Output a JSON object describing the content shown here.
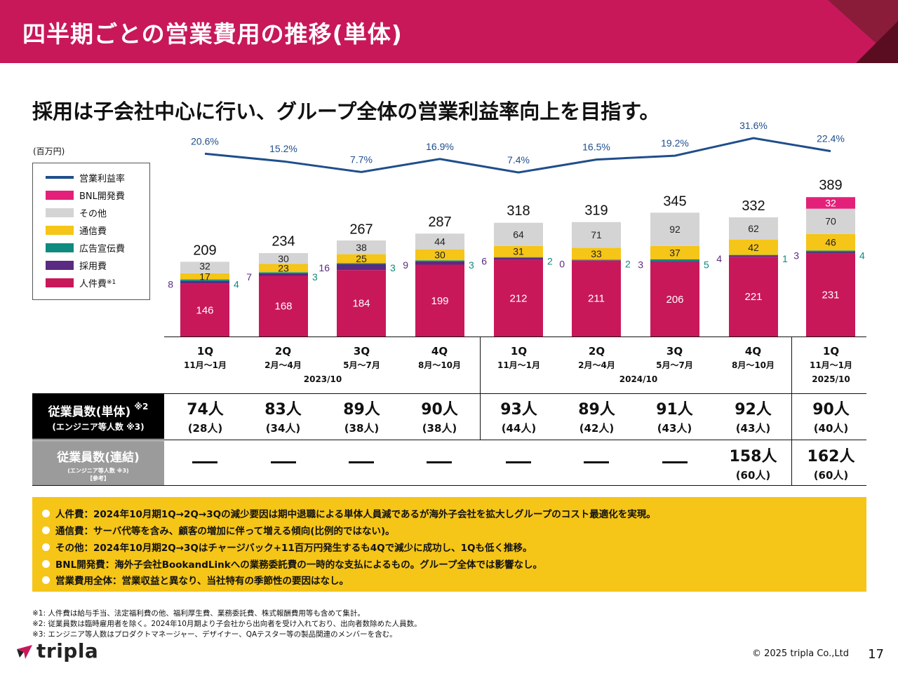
{
  "header": {
    "title": "四半期ごとの営業費用の推移(単体)"
  },
  "subtitle": "採用は子会社中心に行い、グループ全体の営業利益率向上を目指す。",
  "unit_label": "(百万円)",
  "legend": [
    {
      "label": "営業利益率",
      "color": "#1f4e8c",
      "type": "line"
    },
    {
      "label": "BNL開発費",
      "color": "#e3207a",
      "type": "box"
    },
    {
      "label": "その他",
      "color": "#d4d4d4",
      "type": "box"
    },
    {
      "label": "通信費",
      "color": "#f5c518",
      "type": "box"
    },
    {
      "label": "広告宣伝費",
      "color": "#0f8a7e",
      "type": "box"
    },
    {
      "label": "採用費",
      "color": "#5b2a82",
      "type": "box"
    },
    {
      "label": "人件費",
      "color": "#c8185a",
      "type": "box",
      "note": "※1"
    }
  ],
  "chart_data": {
    "type": "bar",
    "stacked": true,
    "categories": [
      "1Q 2023/10",
      "2Q 2023/10",
      "3Q 2023/10",
      "4Q 2023/10",
      "1Q 2024/10",
      "2Q 2024/10",
      "3Q 2024/10",
      "4Q 2024/10",
      "1Q 2025/10"
    ],
    "series": [
      {
        "name": "人件費",
        "color": "#c8185a",
        "values": [
          146,
          168,
          184,
          199,
          212,
          211,
          206,
          221,
          231
        ],
        "labels": [
          "146",
          "168",
          "184",
          "199",
          "212",
          "211",
          "206",
          "221",
          "231"
        ]
      },
      {
        "name": "採用費",
        "color": "#5b2a82",
        "values": [
          8,
          7,
          16,
          9,
          6,
          0,
          3,
          4,
          3
        ],
        "labels": [
          "8",
          "7",
          "16",
          "9",
          "6",
          "0",
          "3",
          "4",
          "3"
        ]
      },
      {
        "name": "広告宣伝費",
        "color": "#0f8a7e",
        "values": [
          4,
          3,
          3,
          3,
          2,
          2,
          5,
          1,
          4
        ],
        "labels": [
          "4",
          "3",
          "3",
          "3",
          "2",
          "2",
          "5",
          "1",
          "4"
        ]
      },
      {
        "name": "通信費",
        "color": "#f5c518",
        "values": [
          17,
          23,
          25,
          30,
          31,
          33,
          37,
          42,
          46
        ],
        "labels": [
          "17",
          "23",
          "25",
          "30",
          "31",
          "33",
          "37",
          "42",
          "46"
        ]
      },
      {
        "name": "その他",
        "color": "#d4d4d4",
        "values": [
          32,
          30,
          38,
          44,
          64,
          71,
          92,
          62,
          70
        ],
        "labels": [
          "32",
          "30",
          "38",
          "44",
          "64",
          "71",
          "92",
          "62",
          "70"
        ]
      },
      {
        "name": "BNL開発費",
        "color": "#e3207a",
        "values": [
          0,
          0,
          0,
          0,
          0,
          0,
          0,
          0,
          32
        ],
        "labels": [
          "",
          "",
          "",
          "",
          "",
          "",
          "",
          "",
          "32"
        ]
      }
    ],
    "totals": [
      209,
      234,
      267,
      287,
      318,
      319,
      345,
      332,
      389
    ],
    "total_labels": [
      "209",
      "234",
      "267",
      "287",
      "318",
      "319",
      "345",
      "332",
      "389"
    ],
    "line": {
      "name": "営業利益率",
      "color": "#1f4e8c",
      "values": [
        20.6,
        15.2,
        7.7,
        16.9,
        7.4,
        16.5,
        19.2,
        31.6,
        22.4
      ],
      "labels": [
        "20.6%",
        "15.2%",
        "7.7%",
        "16.9%",
        "7.4%",
        "16.5%",
        "19.2%",
        "31.6%",
        "22.4%"
      ]
    }
  },
  "quarters": [
    {
      "q": "1Q",
      "months": "11月～1月"
    },
    {
      "q": "2Q",
      "months": "2月～4月"
    },
    {
      "q": "3Q",
      "months": "5月～7月"
    },
    {
      "q": "4Q",
      "months": "8月～10月"
    },
    {
      "q": "1Q",
      "months": "11月～1月"
    },
    {
      "q": "2Q",
      "months": "2月～4月"
    },
    {
      "q": "3Q",
      "months": "5月～7月"
    },
    {
      "q": "4Q",
      "months": "8月～10月"
    },
    {
      "q": "1Q",
      "months": "11月～1月"
    }
  ],
  "fiscal_years": [
    "2023/10",
    "2024/10",
    "2025/10"
  ],
  "employees_single": {
    "label": "従業員数(単体)",
    "label_note": "※2",
    "sub": "(エンジニア等人数 ※3)",
    "values": [
      "74人",
      "83人",
      "89人",
      "90人",
      "93人",
      "89人",
      "91人",
      "92人",
      "90人"
    ],
    "engineers": [
      "(28人)",
      "(34人)",
      "(38人)",
      "(38人)",
      "(44人)",
      "(42人)",
      "(43人)",
      "(43人)",
      "(40人)"
    ]
  },
  "employees_consolidated": {
    "label": "従業員数(連結)",
    "sub": "(エンジニア等人数 ※3)",
    "sub2": "【参考】",
    "values": [
      "",
      "",
      "",
      "",
      "",
      "",
      "",
      "158人",
      "162人"
    ],
    "engineers": [
      "",
      "",
      "",
      "",
      "",
      "",
      "",
      "(60人)",
      "(60人)"
    ]
  },
  "notes": [
    "人件費：2024年10月期1Q→2Q→3Qの減少要因は期中退職による単体人員減であるが海外子会社を拡大しグループのコスト最適化を実現。",
    "通信費：サーバ代等を含み、顧客の増加に伴って増える傾向(比例的ではない)。",
    "その他：2024年10月期2Q→3Qはチャージバック+11百万円発生するも4Qで減少に成功し、1Qも低く推移。",
    "BNL開発費：海外子会社BookandLinkへの業務委託費の一時的な支払によるもの。グループ全体では影響なし。",
    "営業費用全体：営業収益と異なり、当社特有の季節性の要因はなし。"
  ],
  "footnotes": [
    "※1: 人件費は給与手当、法定福利費の他、福利厚生費、業務委託費、株式報酬費用等も含めて集計。",
    "※2: 従業員数は臨時雇用者を除く。2024年10月期より子会社から出向者を受け入れており、出向者数除めた人員数。",
    "※3: エンジニア等人数はプロダクトマネージャー、デザイナー、QAテスター等の製品関連のメンバーを含む。"
  ],
  "logo_text": "tripla",
  "copyright": "© 2025 tripla Co.,Ltd",
  "page_number": "17"
}
